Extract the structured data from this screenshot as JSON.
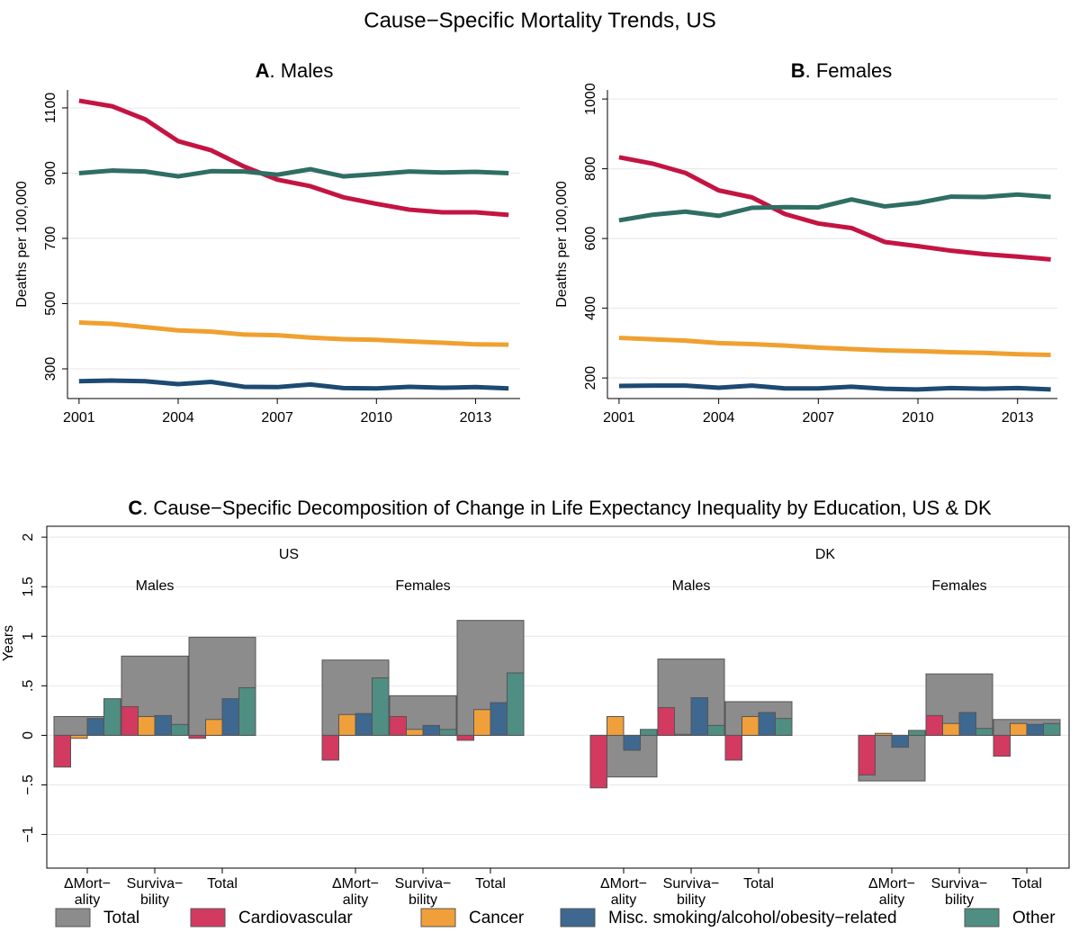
{
  "title": "Cause−Specific Mortality Trends, US",
  "chart_data": [
    {
      "type": "line",
      "title_bold": "A",
      "title": ". Males",
      "y_label": "Deaths per 100,000",
      "x": [
        2001,
        2002,
        2003,
        2004,
        2005,
        2006,
        2007,
        2008,
        2009,
        2010,
        2011,
        2012,
        2013,
        2014
      ],
      "xlim": [
        2000.65,
        2014.35
      ],
      "xticks": [
        2001,
        2004,
        2007,
        2010,
        2013
      ],
      "ylim": [
        209,
        1155
      ],
      "yticks": [
        300,
        500,
        700,
        900,
        1100
      ],
      "grid": true,
      "series": [
        {
          "color": "#c41442",
          "values": [
            1122,
            1105,
            1065,
            998,
            970,
            920,
            880,
            860,
            826,
            806,
            788,
            780,
            780,
            772
          ]
        },
        {
          "color": "#2f6e63",
          "values": [
            900,
            908,
            905,
            890,
            906,
            905,
            895,
            912,
            890,
            897,
            905,
            902,
            904,
            900
          ]
        },
        {
          "color": "#f0a030",
          "values": [
            442,
            438,
            428,
            418,
            414,
            405,
            403,
            396,
            391,
            389,
            384,
            380,
            375,
            374
          ]
        },
        {
          "color": "#1d4a72",
          "values": [
            262,
            264,
            262,
            253,
            260,
            245,
            244,
            252,
            241,
            240,
            245,
            242,
            244,
            240
          ]
        }
      ]
    },
    {
      "type": "line",
      "title_bold": "B",
      "title": ". Females",
      "y_label": "Deaths per 100,000",
      "x": [
        2001,
        2002,
        2003,
        2004,
        2005,
        2006,
        2007,
        2008,
        2009,
        2010,
        2011,
        2012,
        2013,
        2014
      ],
      "xlim": [
        2000.65,
        2014.2
      ],
      "xticks": [
        2001,
        2004,
        2007,
        2010,
        2013
      ],
      "ylim": [
        141,
        1026
      ],
      "yticks": [
        200,
        400,
        600,
        800,
        1000
      ],
      "grid": true,
      "series": [
        {
          "color": "#c41442",
          "values": [
            833,
            815,
            788,
            738,
            718,
            670,
            643,
            630,
            590,
            578,
            565,
            555,
            548,
            540
          ]
        },
        {
          "color": "#2f6e63",
          "values": [
            652,
            668,
            677,
            665,
            688,
            690,
            689,
            712,
            692,
            702,
            720,
            719,
            726,
            719
          ]
        },
        {
          "color": "#f0a030",
          "values": [
            315,
            311,
            307,
            300,
            297,
            293,
            287,
            283,
            279,
            277,
            274,
            272,
            268,
            266
          ]
        },
        {
          "color": "#1d4a72",
          "values": [
            177,
            178,
            178,
            172,
            178,
            170,
            170,
            175,
            169,
            167,
            171,
            169,
            171,
            167
          ]
        }
      ]
    },
    {
      "type": "bar",
      "title_bold": "C",
      "title": ". Cause−Specific Decomposition of Change in Life Expectancy Inequality by Education, US & DK",
      "y_label": "Years",
      "group_labels": [
        "US",
        "DK"
      ],
      "subgroup_labels": [
        "Males",
        "Females",
        "Males",
        "Females"
      ],
      "categories": [
        [
          "ΔMort−",
          "ality"
        ],
        [
          "Surviva−",
          "bility"
        ],
        [
          "Total"
        ],
        [
          "ΔMort−",
          "ality"
        ],
        [
          "Surviva−",
          "bility"
        ],
        [
          "Total"
        ],
        [
          "ΔMort−",
          "ality"
        ],
        [
          "Surviva−",
          "bility"
        ],
        [
          "Total"
        ],
        [
          "ΔMort−",
          "ality"
        ],
        [
          "Surviva−",
          "bility"
        ],
        [
          "Total"
        ]
      ],
      "ylim": [
        -1.34,
        2.11
      ],
      "yticks": [
        {
          "value": -1,
          "label": "−1"
        },
        {
          "value": -0.5,
          "label": "−.5"
        },
        0,
        {
          "value": 0.5,
          "label": ".5"
        },
        1,
        1.5,
        2
      ],
      "grid": true,
      "series": [
        {
          "name": "Total",
          "color": "#8c8c8c",
          "values": [
            0.19,
            0.8,
            0.99,
            0.76,
            0.4,
            1.16,
            -0.42,
            0.77,
            0.34,
            -0.46,
            0.62,
            0.16
          ]
        },
        {
          "name": "Cardiovascular",
          "color": "#d23a60",
          "values": [
            -0.32,
            0.29,
            -0.03,
            -0.25,
            0.19,
            -0.05,
            -0.53,
            0.28,
            -0.25,
            -0.4,
            0.2,
            -0.21
          ]
        },
        {
          "name": "Cancer",
          "color": "#f0a03a",
          "values": [
            -0.03,
            0.19,
            0.16,
            0.21,
            0.06,
            0.26,
            0.19,
            0.01,
            0.19,
            0.02,
            0.12,
            0.12
          ]
        },
        {
          "name": "Misc. smoking/alcohol/obesity−related",
          "color": "#3e6890",
          "values": [
            0.17,
            0.2,
            0.37,
            0.22,
            0.1,
            0.33,
            -0.15,
            0.38,
            0.23,
            -0.12,
            0.23,
            0.11
          ]
        },
        {
          "name": "Other",
          "color": "#4f8e82",
          "values": [
            0.37,
            0.11,
            0.48,
            0.58,
            0.06,
            0.63,
            0.06,
            0.1,
            0.17,
            0.05,
            0.07,
            0.12
          ]
        }
      ]
    }
  ]
}
